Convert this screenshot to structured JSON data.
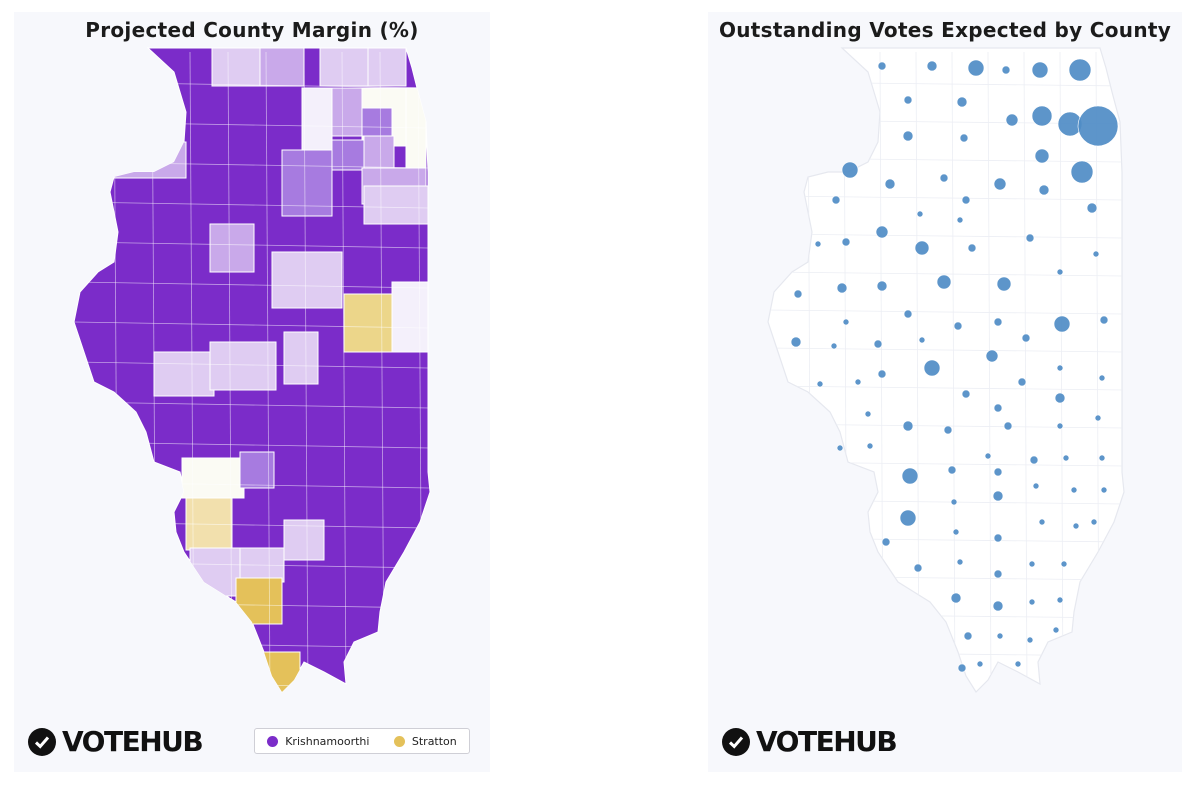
{
  "left_panel": {
    "title": "Projected County Margin (%)",
    "legend": [
      {
        "label": "Krishnamoorthi",
        "color": "#7b2cc9"
      },
      {
        "label": "Stratton",
        "color": "#e4c15a"
      }
    ],
    "logo_text": "VOTEHUB",
    "colors": {
      "strong_k": "#7b2cc9",
      "mid_k": "#a77be0",
      "light_k": "#c9a9ea",
      "pale_k": "#dfccf2",
      "faint": "#f4f0fb",
      "even": "#fbfbf4",
      "pale_s": "#f2e0ad",
      "mid_s": "#ecd68a",
      "strong_s": "#e4c15a"
    }
  },
  "right_panel": {
    "title": "Outstanding Votes Expected by County",
    "logo_text": "VOTEHUB",
    "bubble_color": "#4f8cc6"
  }
}
